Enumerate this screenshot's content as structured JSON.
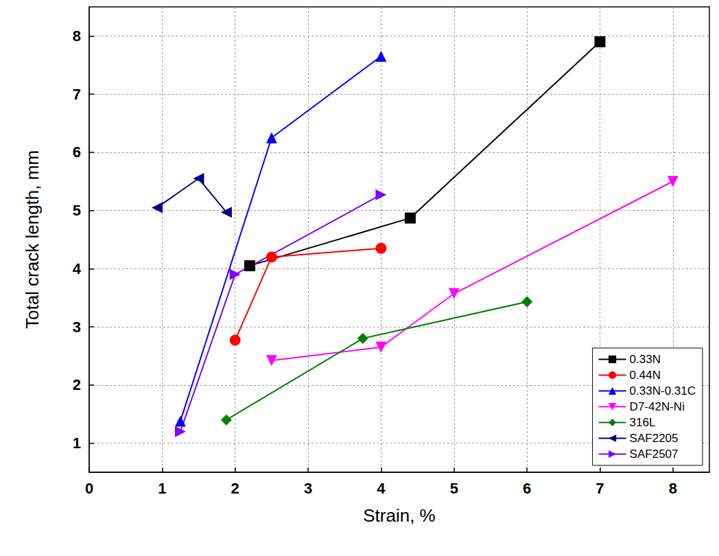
{
  "chart_data": {
    "type": "line",
    "x_label": "Strain, %",
    "y_label": "Total crack length, mm",
    "xlim": [
      0,
      8.5
    ],
    "xticks": [
      0,
      1,
      2,
      3,
      4,
      5,
      6,
      7,
      8
    ],
    "ylim": [
      0.5,
      8.5
    ],
    "yticks": [
      1,
      2,
      3,
      4,
      5,
      6,
      7,
      8
    ],
    "grid": true,
    "legend": "bottom-right",
    "series": [
      {
        "name": "0.33N",
        "color": "#000000",
        "marker": "square",
        "x": [
          2.2,
          4.4,
          7
        ],
        "values": [
          4.05,
          4.87,
          7.9
        ]
      },
      {
        "name": "0.44N",
        "color": "#ff0000",
        "marker": "circle",
        "x": [
          2,
          2.5,
          4
        ],
        "values": [
          2.77,
          4.2,
          4.35
        ]
      },
      {
        "name": "0.33N-0.31C",
        "color": "#0000ff",
        "marker": "triangle-up",
        "x": [
          1.25,
          2.5,
          4
        ],
        "values": [
          1.38,
          6.25,
          7.65
        ]
      },
      {
        "name": "D7-42N-Ni",
        "color": "#ff00ff",
        "marker": "triangle-down",
        "x": [
          2.5,
          4,
          5,
          8
        ],
        "values": [
          2.42,
          2.65,
          3.57,
          5.5
        ]
      },
      {
        "name": "316L",
        "color": "#008000",
        "marker": "diamond",
        "x": [
          1.88,
          3.75,
          6
        ],
        "values": [
          1.4,
          2.8,
          3.43
        ]
      },
      {
        "name": "SAF2205",
        "color": "#000080",
        "marker": "triangle-left",
        "x": [
          0.93,
          1.5,
          1.88
        ],
        "values": [
          5.05,
          5.55,
          4.97
        ]
      },
      {
        "name": "SAF2507",
        "color": "#8000ff",
        "marker": "triangle-right",
        "x": [
          1.25,
          2,
          4
        ],
        "values": [
          1.2,
          3.9,
          5.27
        ]
      }
    ]
  }
}
